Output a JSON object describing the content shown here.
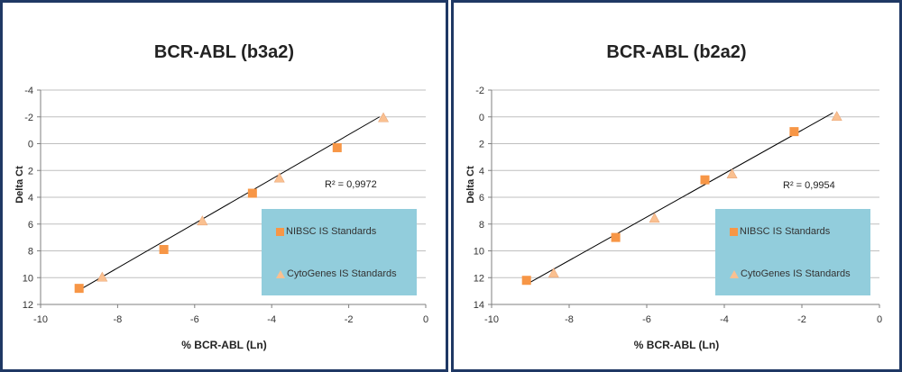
{
  "chart_data": [
    {
      "type": "scatter",
      "title": "BCR-ABL (b3a2)",
      "xlabel": "% BCR-ABL (Ln)",
      "ylabel": "Delta Ct",
      "xlim": [
        -10,
        0
      ],
      "ylim": [
        -4,
        12
      ],
      "y_reversed": true,
      "x_ticks": [
        "-10",
        "-8",
        "-6",
        "-4",
        "-2",
        "0"
      ],
      "y_ticks": [
        "-4",
        "-2",
        "0",
        "2",
        "4",
        "6",
        "8",
        "10",
        "12"
      ],
      "grid": "horizontal",
      "legend_position": "bottom-right",
      "r_squared_label": "R² = 0,9972",
      "trendline": {
        "x": [
          -9.1,
          -1.2
        ],
        "y": [
          11.1,
          -2.0
        ]
      },
      "series": [
        {
          "name": "NIBSC IS Standards",
          "marker": "square",
          "color": "#f79646",
          "x": [
            -9.0,
            -6.8,
            -4.5,
            -2.3
          ],
          "y": [
            10.8,
            7.9,
            3.7,
            0.3
          ]
        },
        {
          "name": "CytoGenes IS Standards",
          "marker": "triangle",
          "color": "#fac090",
          "x": [
            -8.4,
            -5.8,
            -3.8,
            -1.1
          ],
          "y": [
            10.0,
            5.8,
            2.6,
            -1.9
          ]
        }
      ]
    },
    {
      "type": "scatter",
      "title": "BCR-ABL (b2a2)",
      "xlabel": "% BCR-ABL (Ln)",
      "ylabel": "Delta Ct",
      "xlim": [
        -10,
        0
      ],
      "ylim": [
        -2,
        14
      ],
      "y_reversed": true,
      "x_ticks": [
        "-10",
        "-8",
        "-6",
        "-4",
        "-2",
        "0"
      ],
      "y_ticks": [
        "-2",
        "0",
        "2",
        "4",
        "6",
        "8",
        "10",
        "12",
        "14"
      ],
      "grid": "horizontal",
      "legend_position": "bottom-right",
      "r_squared_label": "R² = 0,9954",
      "trendline": {
        "x": [
          -9.1,
          -1.2
        ],
        "y": [
          12.5,
          -0.3
        ]
      },
      "series": [
        {
          "name": "NIBSC IS Standards",
          "marker": "square",
          "color": "#f79646",
          "x": [
            -9.1,
            -6.8,
            -4.5,
            -2.2
          ],
          "y": [
            12.2,
            9.0,
            4.7,
            1.1
          ]
        },
        {
          "name": "CytoGenes IS Standards",
          "marker": "triangle",
          "color": "#fac090",
          "x": [
            -8.4,
            -5.8,
            -3.8,
            -1.1
          ],
          "y": [
            11.7,
            7.6,
            4.3,
            0.0
          ]
        }
      ]
    }
  ]
}
